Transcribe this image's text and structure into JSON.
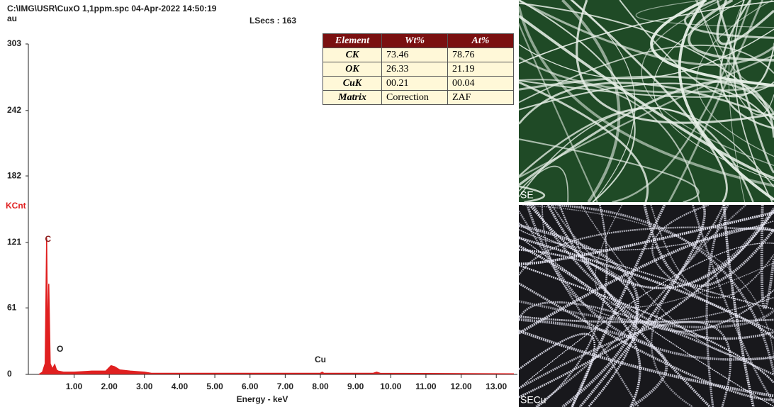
{
  "chart_data": {
    "type": "line",
    "title": "C:\\IMG\\USR\\CuxO 1,1ppm.spc  04-Apr-2022 14:50:19",
    "subtitle": "LSecs : 163",
    "unit_label": "au",
    "y_label": "KCnt",
    "x_label": "Energy - keV",
    "color": "#e02020",
    "x": [
      0,
      0.1,
      0.18,
      0.22,
      0.25,
      0.28,
      0.32,
      0.38,
      0.45,
      0.5,
      0.55,
      0.7,
      1.0,
      1.5,
      1.9,
      2.05,
      2.15,
      2.3,
      2.6,
      3.0,
      3.2,
      4,
      6,
      8,
      8.05,
      8.1,
      9.5,
      9.6,
      9.7,
      13.5
    ],
    "values": [
      0,
      2,
      10,
      125,
      20,
      83,
      10,
      5,
      9,
      4,
      3,
      2,
      2,
      3,
      3,
      8,
      7,
      4,
      3,
      2,
      1,
      1,
      1,
      1,
      2,
      1,
      1,
      2,
      1,
      0.5
    ],
    "annotations": [
      {
        "text": "C",
        "x": 0.22
      },
      {
        "text": "O",
        "x": 0.52
      },
      {
        "text": "Cu",
        "x": 8.04
      }
    ],
    "xlim": [
      -0.3,
      13.6
    ],
    "ylim": [
      0,
      303
    ],
    "xticks": [
      {
        "value": 1,
        "label": "1.00"
      },
      {
        "value": 2,
        "label": "2.00"
      },
      {
        "value": 3,
        "label": "3.00"
      },
      {
        "value": 4,
        "label": "4.00"
      },
      {
        "value": 5,
        "label": "5.00"
      },
      {
        "value": 6,
        "label": "6.00"
      },
      {
        "value": 7,
        "label": "7.00"
      },
      {
        "value": 8,
        "label": "8.00"
      },
      {
        "value": 9,
        "label": "9.00"
      },
      {
        "value": 10,
        "label": "10.00"
      },
      {
        "value": 11,
        "label": "11.00"
      },
      {
        "value": 12,
        "label": "12.00"
      },
      {
        "value": 13,
        "label": "13.00"
      }
    ],
    "yticks": [
      0,
      61,
      121,
      182,
      242,
      303
    ]
  },
  "table": {
    "header": [
      "Element",
      "Wt%",
      "At%"
    ],
    "rows": [
      [
        "CK",
        "73.46",
        "78.76"
      ],
      [
        "OK",
        "26.33",
        "21.19"
      ],
      [
        "CuK",
        "00.21",
        "00.04"
      ],
      [
        "Matrix",
        "Correction",
        "ZAF"
      ]
    ]
  },
  "images": [
    {
      "label": "SE"
    },
    {
      "label": "SECu"
    }
  ]
}
